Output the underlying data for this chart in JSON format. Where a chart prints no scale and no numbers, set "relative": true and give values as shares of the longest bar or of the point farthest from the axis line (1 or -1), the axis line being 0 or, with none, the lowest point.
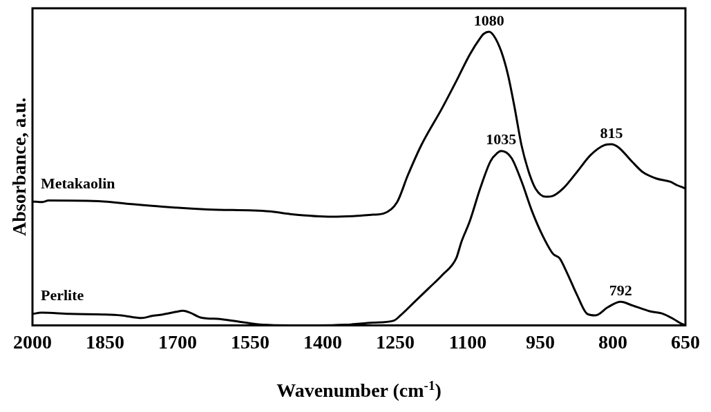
{
  "chart_data": {
    "type": "line",
    "relative": true,
    "xlabel": "Wavenumber (cm$^{-1}$)",
    "ylabel": "Absorbance, a.u.",
    "xlim": [
      2000,
      650
    ],
    "xticks": [
      2000,
      1850,
      1700,
      1550,
      1400,
      1250,
      1100,
      950,
      800,
      650
    ],
    "grid": false,
    "legend": false,
    "marker": "none",
    "line_style": "solid",
    "series": [
      {
        "name": "Metakaolin",
        "color": "#000000",
        "x": [
          2000,
          1979,
          1967,
          1853,
          1796,
          1731,
          1639,
          1510,
          1467,
          1381,
          1338,
          1296,
          1274,
          1246,
          1224,
          1196,
          1153,
          1124,
          1096,
          1074,
          1067,
          1056,
          1046,
          1031,
          1017,
          1003,
          989,
          974,
          960,
          939,
          924,
          903,
          874,
          846,
          817,
          803,
          789,
          760,
          739,
          710,
          681,
          667,
          656,
          650
        ],
        "values": [
          0.422,
          0.42,
          0.425,
          0.422,
          0.413,
          0.404,
          0.395,
          0.388,
          0.379,
          0.37,
          0.372,
          0.377,
          0.381,
          0.42,
          0.511,
          0.614,
          0.74,
          0.831,
          0.922,
          0.979,
          0.993,
          1,
          0.986,
          0.934,
          0.854,
          0.74,
          0.614,
          0.523,
          0.466,
          0.438,
          0.441,
          0.466,
          0.523,
          0.58,
          0.614,
          0.617,
          0.607,
          0.557,
          0.523,
          0.5,
          0.489,
          0.477,
          0.47,
          0.466
        ]
      },
      {
        "name": "Perlite",
        "color": "#000000",
        "x": [
          2000,
          1981,
          1924,
          1853,
          1817,
          1774,
          1753,
          1731,
          1703,
          1689,
          1674,
          1653,
          1610,
          1567,
          1524,
          1467,
          1410,
          1353,
          1296,
          1253,
          1239,
          1210,
          1181,
          1153,
          1124,
          1113,
          1096,
          1074,
          1053,
          1039,
          1031,
          1010,
          989,
          967,
          946,
          924,
          910,
          896,
          874,
          853,
          836,
          810,
          784,
          760,
          724,
          696,
          674,
          660,
          650
        ],
        "values": [
          0.039,
          0.043,
          0.039,
          0.037,
          0.034,
          0.025,
          0.032,
          0.037,
          0.046,
          0.05,
          0.043,
          0.027,
          0.021,
          0.011,
          0.002,
          0,
          0,
          0.002,
          0.009,
          0.016,
          0.034,
          0.08,
          0.126,
          0.171,
          0.228,
          0.285,
          0.354,
          0.468,
          0.559,
          0.587,
          0.594,
          0.571,
          0.491,
          0.388,
          0.308,
          0.244,
          0.228,
          0.183,
          0.103,
          0.039,
          0.034,
          0.062,
          0.08,
          0.068,
          0.048,
          0.039,
          0.021,
          0.007,
          0
        ]
      }
    ],
    "annotations": [
      {
        "text": "1080",
        "x": 1056,
        "y": 1
      },
      {
        "text": "1035",
        "x": 1031,
        "y": 0.594
      },
      {
        "text": "815",
        "x": 803,
        "y": 0.617
      },
      {
        "text": "792",
        "x": 784,
        "y": 0.08
      }
    ]
  }
}
